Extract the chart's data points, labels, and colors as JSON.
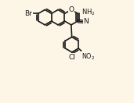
{
  "bg_color": "#fdf5e6",
  "bond_color": "#1a1a1a",
  "lw": 1.2,
  "xlim": [
    -0.05,
    1.15
  ],
  "ylim": [
    -0.55,
    1.0
  ],
  "figsize": [
    1.71,
    1.32
  ],
  "dpi": 100
}
